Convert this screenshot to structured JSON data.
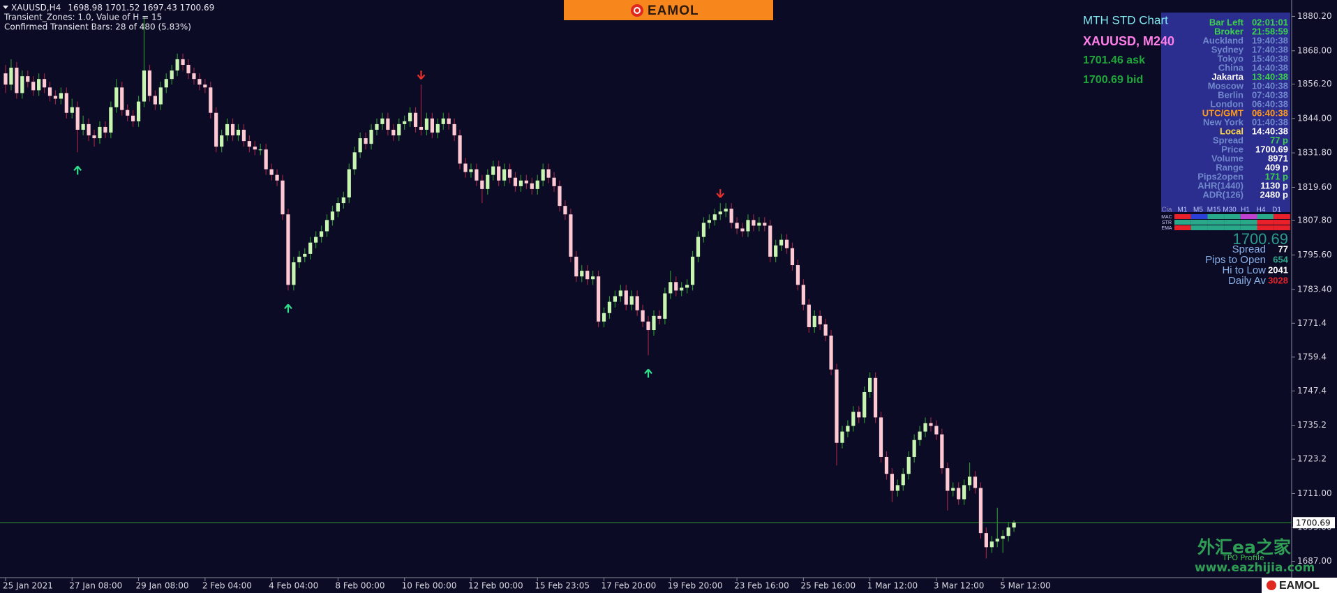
{
  "header": {
    "symbol": "XAUUSD,H4",
    "ohlc_text": "1698.98 1701.52 1697.43 1700.69",
    "zones": "Transient_Zones: 1.0, Value of H = 15",
    "confirmed": "Confirmed Transient Bars: 28 of 480 (5.83%)"
  },
  "banner": "EAMOL",
  "footer_logo": "EAMOL",
  "watermark": {
    "title": "外汇ea之家",
    "url": "www.eazhijia.com",
    "note": "TPO Profile"
  },
  "panel": {
    "title": "MTH STD Chart",
    "symbol": "XAUUSD, M240",
    "ask": "1701.46 ask",
    "bid": "1700.69 bid",
    "rows": [
      [
        "Bar Left",
        "02:01:01"
      ],
      [
        "Broker",
        "21:58:59"
      ],
      [
        "Auckland",
        "19:40:38"
      ],
      [
        "Sydney",
        "17:40:38"
      ],
      [
        "Tokyo",
        "15:40:38"
      ],
      [
        "China",
        "14:40:38"
      ],
      [
        "Jakarta",
        "13:40:38"
      ],
      [
        "Moscow",
        "10:40:38"
      ],
      [
        "Berlin",
        "07:40:38"
      ],
      [
        "London",
        "06:40:38"
      ],
      [
        "UTC/GMT",
        "06:40:38"
      ],
      [
        "New York",
        "01:40:38"
      ],
      [
        "Local",
        "14:40:38"
      ],
      [
        "Spread",
        "77 p"
      ],
      [
        "Price",
        "1700.69"
      ],
      [
        "Volume",
        "8971"
      ],
      [
        "Range",
        "409 p"
      ],
      [
        "Pips2open",
        "171 p"
      ],
      [
        "AHR(1440)",
        "1130 p"
      ],
      [
        "ADR(126)",
        "2480 p"
      ]
    ],
    "grid_header": [
      "Cia",
      "M1",
      "M5",
      "M15",
      "M30",
      "H1",
      "H4",
      "D1"
    ],
    "grid_rows": [
      "MAC",
      "STR",
      "EMA"
    ],
    "price": "1700.69",
    "stats": [
      [
        "Spread",
        "77"
      ],
      [
        "Pips to Open",
        "654"
      ],
      [
        "Hi to Low",
        "2041"
      ],
      [
        "Daily Av",
        "3028"
      ]
    ]
  },
  "chart_data": {
    "type": "candlestick",
    "up_color": "#c8f5b0",
    "down_color": "#ffc9d4",
    "up_wick": "#2f8f2f",
    "down_wick": "#9a2444",
    "ylim": [
      1681.2,
      1886.0
    ],
    "yticks": [
      {
        "value": 1880.2,
        "label": "1880.20"
      },
      {
        "value": 1868.0,
        "label": "1868.00"
      },
      {
        "value": 1856.2,
        "label": "1856.20"
      },
      {
        "value": 1844.0,
        "label": "1844.00"
      },
      {
        "value": 1831.8,
        "label": "1831.80"
      },
      {
        "value": 1819.6,
        "label": "1819.60"
      },
      {
        "value": 1807.8,
        "label": "1807.80"
      },
      {
        "value": 1795.6,
        "label": "1795.60"
      },
      {
        "value": 1783.4,
        "label": "1783.40"
      },
      1771.4,
      1759.4,
      1747.4,
      1735.2,
      1723.2,
      {
        "value": 1711.0,
        "label": "1711.00"
      },
      {
        "value": 1699.0,
        "label": "1699.00"
      },
      {
        "value": 1687.0,
        "label": "1687.00"
      }
    ],
    "current_price": 1700.69,
    "price_line_color": "#2e9e2e",
    "signals_up": [
      13,
      51,
      116
    ],
    "signals_down": [
      75,
      129
    ],
    "categories": [
      "25 Jan 2021",
      null,
      null,
      null,
      null,
      null,
      null,
      null,
      null,
      null,
      null,
      null,
      "27 Jan 08:00",
      null,
      null,
      null,
      null,
      null,
      null,
      null,
      null,
      null,
      null,
      null,
      "29 Jan 08:00",
      null,
      null,
      null,
      null,
      null,
      null,
      null,
      null,
      null,
      null,
      null,
      "2 Feb 04:00",
      null,
      null,
      null,
      null,
      null,
      null,
      null,
      null,
      null,
      null,
      null,
      "4 Feb 04:00",
      null,
      null,
      null,
      null,
      null,
      null,
      null,
      null,
      null,
      null,
      null,
      "8 Feb 00:00",
      null,
      null,
      null,
      null,
      null,
      null,
      null,
      null,
      null,
      null,
      null,
      "10 Feb 00:00",
      null,
      null,
      null,
      null,
      null,
      null,
      null,
      null,
      null,
      null,
      null,
      "12 Feb 00:00",
      null,
      null,
      null,
      null,
      null,
      null,
      null,
      null,
      null,
      null,
      null,
      "15 Feb 23:05",
      null,
      null,
      null,
      null,
      null,
      null,
      null,
      null,
      null,
      null,
      null,
      "17 Feb 20:00",
      null,
      null,
      null,
      null,
      null,
      null,
      null,
      null,
      null,
      null,
      null,
      "19 Feb 20:00",
      null,
      null,
      null,
      null,
      null,
      null,
      null,
      null,
      null,
      null,
      null,
      "23 Feb 16:00",
      null,
      null,
      null,
      null,
      null,
      null,
      null,
      null,
      null,
      null,
      null,
      "25 Feb 16:00",
      null,
      null,
      null,
      null,
      null,
      null,
      null,
      null,
      null,
      null,
      null,
      "1 Mar 12:00",
      null,
      null,
      null,
      null,
      null,
      null,
      null,
      null,
      null,
      null,
      null,
      "3 Mar 12:00",
      null,
      null,
      null,
      null,
      null,
      null,
      null,
      null,
      null,
      null,
      null,
      "5 Mar 12:00",
      null,
      null
    ],
    "candles": [
      [
        1860,
        1863,
        1853,
        1856
      ],
      [
        1856,
        1865,
        1854,
        1862
      ],
      [
        1862,
        1864,
        1851,
        1853
      ],
      [
        1853,
        1861,
        1851,
        1859
      ],
      [
        1859,
        1861,
        1855,
        1857
      ],
      [
        1857,
        1859,
        1852,
        1854
      ],
      [
        1854,
        1860,
        1852,
        1858
      ],
      [
        1858,
        1860,
        1853,
        1855
      ],
      [
        1855,
        1857,
        1850,
        1852
      ],
      [
        1852,
        1854,
        1849,
        1851
      ],
      [
        1851,
        1855,
        1849,
        1853
      ],
      [
        1853,
        1855,
        1844,
        1846
      ],
      [
        1846,
        1851,
        1844,
        1848
      ],
      [
        1848,
        1850,
        1832,
        1840
      ],
      [
        1840,
        1845,
        1838,
        1842
      ],
      [
        1842,
        1844,
        1836,
        1838
      ],
      [
        1838,
        1840,
        1834,
        1837
      ],
      [
        1837,
        1843,
        1835,
        1841
      ],
      [
        1841,
        1843,
        1837,
        1839
      ],
      [
        1839,
        1850,
        1837,
        1848
      ],
      [
        1848,
        1858,
        1846,
        1855
      ],
      [
        1855,
        1857,
        1845,
        1847
      ],
      [
        1847,
        1849,
        1843,
        1845
      ],
      [
        1845,
        1847,
        1841,
        1843
      ],
      [
        1843,
        1852,
        1841,
        1850
      ],
      [
        1850,
        1880,
        1848,
        1861
      ],
      [
        1861,
        1863,
        1850,
        1852
      ],
      [
        1852,
        1854,
        1847,
        1849
      ],
      [
        1849,
        1857,
        1847,
        1855
      ],
      [
        1855,
        1860,
        1853,
        1858
      ],
      [
        1858,
        1863,
        1856,
        1861
      ],
      [
        1861,
        1867,
        1859,
        1865
      ],
      [
        1865,
        1867,
        1861,
        1863
      ],
      [
        1863,
        1865,
        1858,
        1860
      ],
      [
        1860,
        1862,
        1856,
        1858
      ],
      [
        1858,
        1860,
        1854,
        1856
      ],
      [
        1856,
        1858,
        1853,
        1855
      ],
      [
        1855,
        1857,
        1844,
        1846
      ],
      [
        1846,
        1848,
        1832,
        1834
      ],
      [
        1834,
        1840,
        1832,
        1838
      ],
      [
        1838,
        1844,
        1836,
        1842
      ],
      [
        1842,
        1844,
        1836,
        1838
      ],
      [
        1838,
        1842,
        1836,
        1840
      ],
      [
        1840,
        1842,
        1834,
        1836
      ],
      [
        1836,
        1838,
        1832,
        1834
      ],
      [
        1834,
        1836,
        1831,
        1833
      ],
      [
        1833,
        1835,
        1831,
        1833
      ],
      [
        1833,
        1835,
        1824,
        1826
      ],
      [
        1826,
        1828,
        1822,
        1824
      ],
      [
        1824,
        1826,
        1820,
        1822
      ],
      [
        1822,
        1824,
        1808,
        1810
      ],
      [
        1810,
        1812,
        1783,
        1785
      ],
      [
        1785,
        1795,
        1783,
        1793
      ],
      [
        1793,
        1797,
        1791,
        1795
      ],
      [
        1795,
        1798,
        1793,
        1796
      ],
      [
        1796,
        1802,
        1794,
        1800
      ],
      [
        1800,
        1804,
        1798,
        1802
      ],
      [
        1802,
        1806,
        1800,
        1804
      ],
      [
        1804,
        1810,
        1802,
        1808
      ],
      [
        1808,
        1813,
        1806,
        1811
      ],
      [
        1811,
        1816,
        1809,
        1814
      ],
      [
        1814,
        1818,
        1812,
        1816
      ],
      [
        1816,
        1828,
        1814,
        1826
      ],
      [
        1826,
        1834,
        1824,
        1832
      ],
      [
        1832,
        1839,
        1830,
        1837
      ],
      [
        1837,
        1839,
        1833,
        1835
      ],
      [
        1835,
        1842,
        1833,
        1840
      ],
      [
        1840,
        1844,
        1838,
        1842
      ],
      [
        1842,
        1846,
        1840,
        1844
      ],
      [
        1844,
        1846,
        1838,
        1840
      ],
      [
        1840,
        1842,
        1836,
        1838
      ],
      [
        1838,
        1844,
        1836,
        1842
      ],
      [
        1842,
        1845,
        1840,
        1843
      ],
      [
        1843,
        1848,
        1841,
        1846
      ],
      [
        1846,
        1848,
        1839,
        1841
      ],
      [
        1841,
        1856,
        1838,
        1840
      ],
      [
        1840,
        1846,
        1838,
        1844
      ],
      [
        1844,
        1846,
        1837,
        1839
      ],
      [
        1839,
        1844,
        1837,
        1842
      ],
      [
        1842,
        1846,
        1840,
        1844
      ],
      [
        1844,
        1846,
        1840,
        1842
      ],
      [
        1842,
        1844,
        1836,
        1838
      ],
      [
        1838,
        1840,
        1826,
        1828
      ],
      [
        1828,
        1830,
        1823,
        1825
      ],
      [
        1825,
        1828,
        1823,
        1826
      ],
      [
        1826,
        1828,
        1820,
        1822
      ],
      [
        1822,
        1824,
        1814,
        1819
      ],
      [
        1819,
        1826,
        1817,
        1824
      ],
      [
        1824,
        1829,
        1822,
        1827
      ],
      [
        1827,
        1829,
        1820,
        1822
      ],
      [
        1822,
        1828,
        1820,
        1826
      ],
      [
        1826,
        1828,
        1821,
        1823
      ],
      [
        1823,
        1825,
        1818,
        1820
      ],
      [
        1820,
        1824,
        1818,
        1822
      ],
      [
        1822,
        1824,
        1819,
        1821
      ],
      [
        1821,
        1823,
        1817,
        1819
      ],
      [
        1819,
        1824,
        1817,
        1822
      ],
      [
        1822,
        1828,
        1820,
        1826
      ],
      [
        1826,
        1828,
        1821,
        1823
      ],
      [
        1823,
        1825,
        1818,
        1820
      ],
      [
        1820,
        1822,
        1811,
        1813
      ],
      [
        1813,
        1815,
        1808,
        1810
      ],
      [
        1810,
        1812,
        1793,
        1795
      ],
      [
        1795,
        1797,
        1786,
        1788
      ],
      [
        1788,
        1792,
        1786,
        1790
      ],
      [
        1790,
        1792,
        1785,
        1787
      ],
      [
        1787,
        1790,
        1785,
        1788
      ],
      [
        1788,
        1790,
        1770,
        1772
      ],
      [
        1772,
        1777,
        1770,
        1775
      ],
      [
        1775,
        1781,
        1773,
        1779
      ],
      [
        1779,
        1783,
        1777,
        1781
      ],
      [
        1781,
        1785,
        1779,
        1783
      ],
      [
        1783,
        1785,
        1776,
        1778
      ],
      [
        1778,
        1783,
        1776,
        1781
      ],
      [
        1781,
        1783,
        1774,
        1776
      ],
      [
        1776,
        1778,
        1770,
        1772
      ],
      [
        1772,
        1774,
        1760,
        1769
      ],
      [
        1769,
        1776,
        1767,
        1774
      ],
      [
        1774,
        1776,
        1771,
        1773
      ],
      [
        1773,
        1784,
        1771,
        1782
      ],
      [
        1782,
        1790,
        1780,
        1786
      ],
      [
        1786,
        1788,
        1781,
        1783
      ],
      [
        1783,
        1786,
        1781,
        1784
      ],
      [
        1784,
        1787,
        1782,
        1785
      ],
      [
        1785,
        1797,
        1783,
        1795
      ],
      [
        1795,
        1804,
        1793,
        1802
      ],
      [
        1802,
        1809,
        1800,
        1807
      ],
      [
        1807,
        1810,
        1805,
        1808
      ],
      [
        1808,
        1812,
        1806,
        1810
      ],
      [
        1810,
        1814,
        1808,
        1811
      ],
      [
        1811,
        1814,
        1809,
        1812
      ],
      [
        1812,
        1814,
        1805,
        1807
      ],
      [
        1807,
        1809,
        1803,
        1805
      ],
      [
        1805,
        1807,
        1802,
        1804
      ],
      [
        1804,
        1810,
        1802,
        1808
      ],
      [
        1808,
        1810,
        1804,
        1806
      ],
      [
        1806,
        1809,
        1804,
        1807
      ],
      [
        1807,
        1809,
        1804,
        1806
      ],
      [
        1806,
        1808,
        1793,
        1795
      ],
      [
        1795,
        1801,
        1793,
        1799
      ],
      [
        1799,
        1803,
        1797,
        1801
      ],
      [
        1801,
        1803,
        1796,
        1798
      ],
      [
        1798,
        1800,
        1790,
        1792
      ],
      [
        1792,
        1794,
        1783,
        1785
      ],
      [
        1785,
        1787,
        1776,
        1778
      ],
      [
        1778,
        1780,
        1768,
        1770
      ],
      [
        1770,
        1776,
        1768,
        1774
      ],
      [
        1774,
        1776,
        1769,
        1771
      ],
      [
        1771,
        1773,
        1765,
        1767
      ],
      [
        1767,
        1769,
        1753,
        1755
      ],
      [
        1755,
        1757,
        1721,
        1729
      ],
      [
        1729,
        1735,
        1727,
        1733
      ],
      [
        1733,
        1737,
        1731,
        1735
      ],
      [
        1735,
        1742,
        1733,
        1740
      ],
      [
        1740,
        1742,
        1736,
        1738
      ],
      [
        1738,
        1749,
        1736,
        1747
      ],
      [
        1747,
        1754,
        1745,
        1752
      ],
      [
        1752,
        1754,
        1736,
        1738
      ],
      [
        1738,
        1740,
        1722,
        1724
      ],
      [
        1724,
        1726,
        1716,
        1718
      ],
      [
        1718,
        1720,
        1708,
        1712
      ],
      [
        1712,
        1716,
        1710,
        1714
      ],
      [
        1714,
        1720,
        1712,
        1718
      ],
      [
        1718,
        1726,
        1716,
        1724
      ],
      [
        1724,
        1732,
        1722,
        1730
      ],
      [
        1730,
        1735,
        1728,
        1733
      ],
      [
        1733,
        1738,
        1731,
        1736
      ],
      [
        1736,
        1738,
        1733,
        1735
      ],
      [
        1735,
        1737,
        1730,
        1732
      ],
      [
        1732,
        1734,
        1718,
        1720
      ],
      [
        1720,
        1722,
        1705,
        1712
      ],
      [
        1712,
        1715,
        1710,
        1713
      ],
      [
        1713,
        1715,
        1707,
        1709
      ],
      [
        1709,
        1716,
        1707,
        1714
      ],
      [
        1714,
        1722,
        1712,
        1717
      ],
      [
        1717,
        1719,
        1711,
        1713
      ],
      [
        1713,
        1715,
        1695,
        1697
      ],
      [
        1697,
        1699,
        1688,
        1692
      ],
      [
        1692,
        1696,
        1690,
        1694
      ],
      [
        1694,
        1706,
        1692,
        1695
      ],
      [
        1695,
        1698,
        1690,
        1696
      ],
      [
        1696,
        1701,
        1694,
        1698.98
      ],
      [
        1698.98,
        1701.52,
        1697.43,
        1700.69
      ]
    ]
  }
}
